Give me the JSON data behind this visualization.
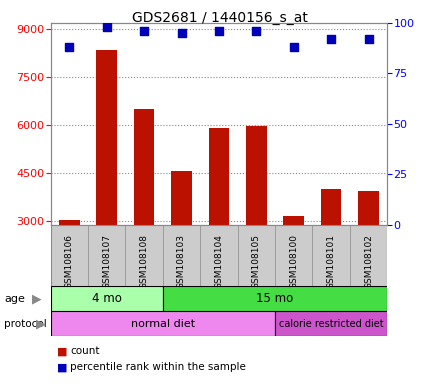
{
  "title": "GDS2681 / 1440156_s_at",
  "samples": [
    "GSM108106",
    "GSM108107",
    "GSM108108",
    "GSM108103",
    "GSM108104",
    "GSM108105",
    "GSM108100",
    "GSM108101",
    "GSM108102"
  ],
  "counts": [
    3060,
    8350,
    6500,
    4580,
    5920,
    5980,
    3180,
    4000,
    3950
  ],
  "percentile_ranks": [
    88,
    98,
    96,
    95,
    96,
    96,
    88,
    92,
    92
  ],
  "ylim_left": [
    2900,
    9200
  ],
  "ylim_right": [
    0,
    100
  ],
  "yticks_left": [
    3000,
    4500,
    6000,
    7500,
    9000
  ],
  "yticks_right": [
    0,
    25,
    50,
    75,
    100
  ],
  "bar_color": "#bb1100",
  "scatter_color": "#0000bb",
  "bar_width": 0.55,
  "age_groups": [
    {
      "label": "4 mo",
      "start": 0,
      "end": 3,
      "color": "#aaffaa"
    },
    {
      "label": "15 mo",
      "start": 3,
      "end": 9,
      "color": "#44dd44"
    }
  ],
  "protocol_groups": [
    {
      "label": "normal diet",
      "start": 0,
      "end": 6,
      "color": "#ee88ee"
    },
    {
      "label": "calorie restricted diet",
      "start": 6,
      "end": 9,
      "color": "#cc55cc"
    }
  ],
  "legend_items": [
    {
      "color": "#bb1100",
      "label": "count"
    },
    {
      "color": "#0000bb",
      "label": "percentile rank within the sample"
    }
  ],
  "grid_color": "#888888",
  "background_color": "#cccccc",
  "plot_bg": "#ffffff"
}
